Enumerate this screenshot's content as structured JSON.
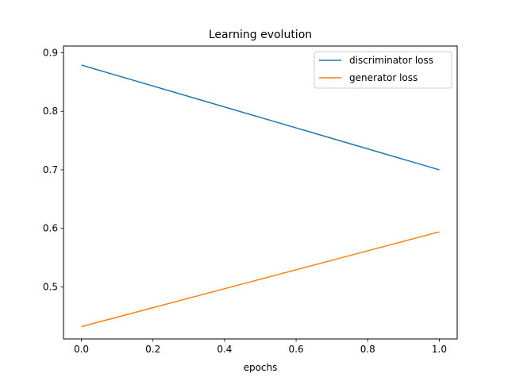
{
  "chart_data": {
    "type": "line",
    "title": "Learning evolution",
    "xlabel": "epochs",
    "ylabel": "",
    "xlim": [
      -0.05,
      1.05
    ],
    "ylim": [
      0.411,
      0.9115
    ],
    "x_ticks": [
      0.0,
      0.2,
      0.4,
      0.6,
      0.8,
      1.0
    ],
    "x_tick_labels": [
      "0.0",
      "0.2",
      "0.4",
      "0.6",
      "0.8",
      "1.0"
    ],
    "y_ticks": [
      0.5,
      0.6,
      0.7,
      0.8,
      0.9
    ],
    "y_tick_labels": [
      "0.5",
      "0.6",
      "0.7",
      "0.8",
      "0.9"
    ],
    "grid": false,
    "legend_position": "upper right",
    "series": [
      {
        "name": "discriminator loss",
        "color": "#1f77b4",
        "x": [
          0.0,
          1.0
        ],
        "y": [
          0.879,
          0.7
        ]
      },
      {
        "name": "generator loss",
        "color": "#ff7f0e",
        "x": [
          0.0,
          1.0
        ],
        "y": [
          0.432,
          0.594
        ]
      }
    ]
  }
}
